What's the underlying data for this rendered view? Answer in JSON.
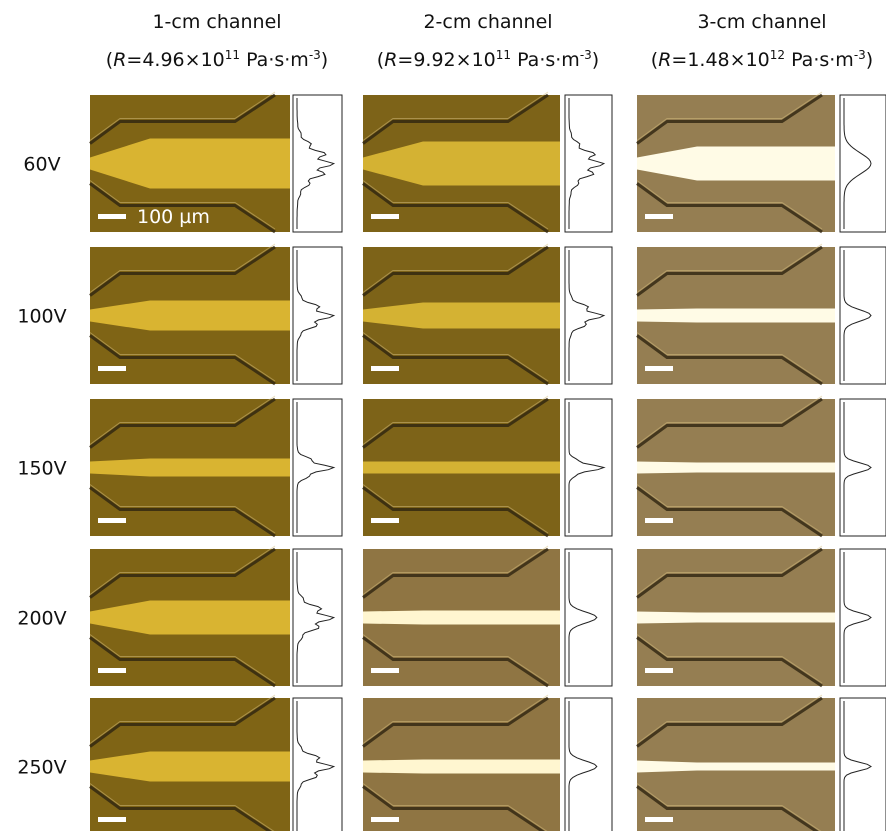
{
  "columns": [
    {
      "title": "1-cm channel",
      "resistance": [
        "(",
        "R",
        "=4.96×10",
        "11",
        " Pa·s·m",
        "-3",
        ")"
      ]
    },
    {
      "title": "2-cm channel",
      "resistance": [
        "(",
        "R",
        "=9.92×10",
        "11",
        " Pa·s·m",
        "-3",
        ")"
      ]
    },
    {
      "title": "3-cm channel",
      "resistance": [
        "(",
        "R",
        "=1.48×10",
        "12",
        " Pa·s·m",
        "-3",
        ")"
      ]
    }
  ],
  "rows": [
    "60V",
    "100V",
    "150V",
    "200V",
    "250V"
  ],
  "scale_bar": "100 µm"
}
